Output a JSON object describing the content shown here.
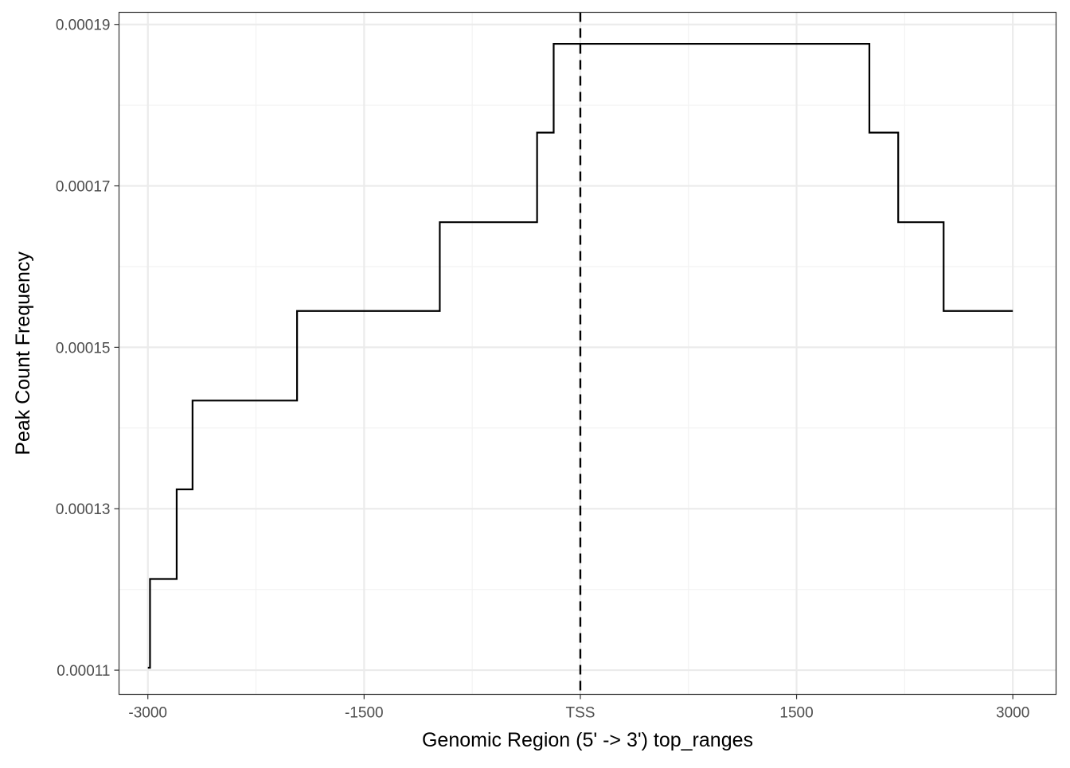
{
  "chart_data": {
    "type": "line",
    "subtype": "step",
    "title": "",
    "xlabel": "Genomic Region (5' -> 3') top_ranges",
    "ylabel": "Peak Count Frequency",
    "xlim": [
      -3200,
      3300
    ],
    "ylim": [
      0.000107,
      0.0001915
    ],
    "x_ticks": [
      {
        "value": -3000,
        "label": "-3000"
      },
      {
        "value": -1500,
        "label": "-1500"
      },
      {
        "value": 0,
        "label": "TSS"
      },
      {
        "value": 1500,
        "label": "1500"
      },
      {
        "value": 3000,
        "label": "3000"
      }
    ],
    "y_ticks": [
      {
        "value": 0.00011,
        "label": "0.00011"
      },
      {
        "value": 0.00013,
        "label": "0.00013"
      },
      {
        "value": 0.00015,
        "label": "0.00015"
      },
      {
        "value": 0.00017,
        "label": "0.00017"
      },
      {
        "value": 0.00019,
        "label": "0.00019"
      }
    ],
    "grid": true,
    "reference_lines": [
      {
        "axis": "x",
        "value": 0,
        "style": "dashed",
        "color": "#000000"
      }
    ],
    "series": [
      {
        "color": "#000000",
        "x": [
          -3000,
          -2985,
          -2985,
          -2800,
          -2800,
          -2690,
          -2690,
          -1965,
          -1965,
          -975,
          -975,
          -300,
          -300,
          -185,
          -185,
          2005,
          2005,
          2205,
          2205,
          2520,
          2520,
          3000
        ],
        "y": [
          0.0001103,
          0.0001103,
          0.0001213,
          0.0001213,
          0.0001324,
          0.0001324,
          0.0001434,
          0.0001434,
          0.0001545,
          0.0001545,
          0.0001655,
          0.0001655,
          0.0001766,
          0.0001766,
          0.0001876,
          0.0001876,
          0.0001766,
          0.0001766,
          0.0001655,
          0.0001655,
          0.0001545,
          0.0001545
        ]
      }
    ]
  },
  "colors": {
    "panel_border": "#333333",
    "grid_major": "#ebebeb",
    "grid_minor": "#f2f2f2",
    "tick_text": "#4d4d4d",
    "line": "#000000"
  }
}
